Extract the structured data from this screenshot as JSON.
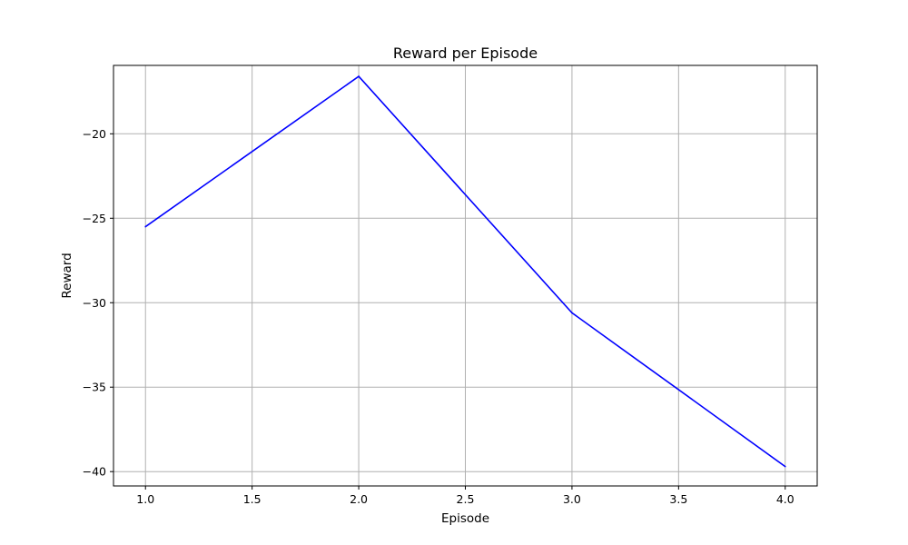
{
  "chart_data": {
    "type": "line",
    "title": "Reward per Episode",
    "xlabel": "Episode",
    "ylabel": "Reward",
    "x": [
      1.0,
      2.0,
      3.0,
      4.0
    ],
    "series": [
      {
        "values": [
          -25.5,
          -16.6,
          -30.6,
          -39.7
        ],
        "color": "#0000ff"
      }
    ],
    "xlim": [
      0.85,
      4.15
    ],
    "ylim": [
      -40.85,
      -15.95
    ],
    "xticks": [
      1.0,
      1.5,
      2.0,
      2.5,
      3.0,
      3.5,
      4.0
    ],
    "xtick_labels": [
      "1.0",
      "1.5",
      "2.0",
      "2.5",
      "3.0",
      "3.5",
      "4.0"
    ],
    "yticks": [
      -20,
      -25,
      -30,
      -35,
      -40
    ],
    "ytick_labels": [
      "−20",
      "−25",
      "−30",
      "−35",
      "−40"
    ],
    "grid": true,
    "grid_color": "#b0b0b0",
    "legend": false
  }
}
